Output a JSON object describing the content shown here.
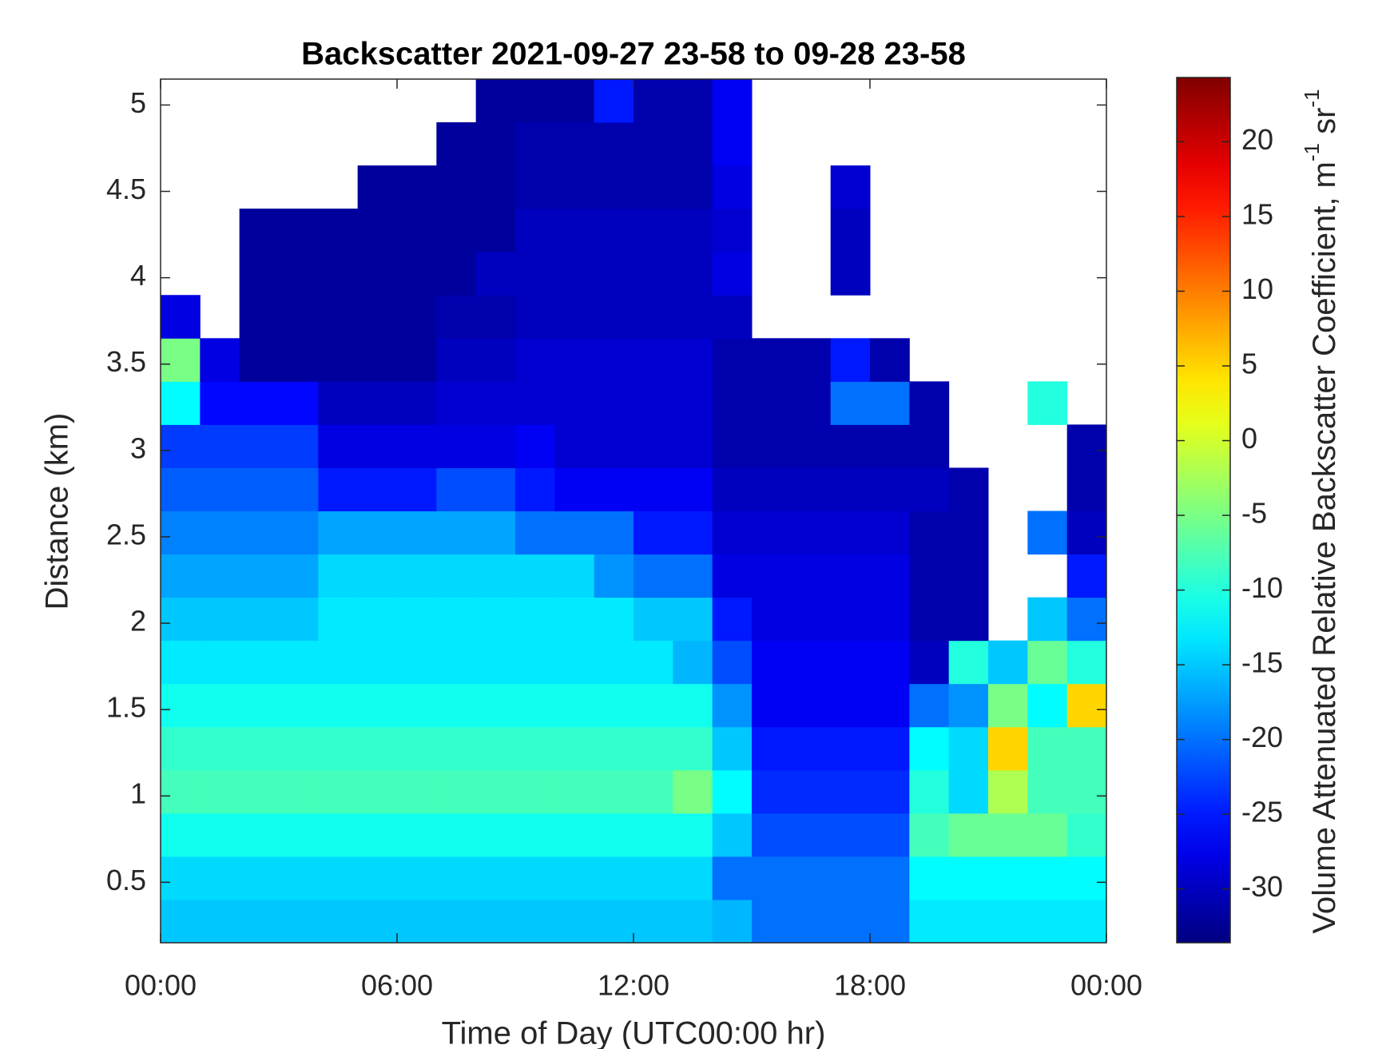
{
  "chart_data": {
    "type": "heatmap",
    "title": "Backscatter 2021-09-27 23-58 to 09-28 23-58",
    "xlabel": "Time of Day (UTC00:00 hr)",
    "ylabel": "Distance (km)",
    "colorbar_label": [
      "Volume Attenuated Relative Backscatter Coefficient, m",
      "-1",
      " sr",
      "-1"
    ],
    "colormap": "jet",
    "clim": [
      -33.6,
      24.3
    ],
    "colorbar_ticks": [
      -30,
      -25,
      -20,
      -15,
      -10,
      -5,
      0,
      5,
      10,
      15,
      20
    ],
    "xlim": [
      0,
      24
    ],
    "xticks": [
      {
        "value": 0,
        "label": "00:00"
      },
      {
        "value": 6,
        "label": "06:00"
      },
      {
        "value": 12,
        "label": "12:00"
      },
      {
        "value": 18,
        "label": "18:00"
      },
      {
        "value": 24,
        "label": "00:00"
      }
    ],
    "ylim": [
      0.15,
      5.15
    ],
    "yticks": [
      0.5,
      1,
      1.5,
      2,
      2.5,
      3,
      3.5,
      4,
      4.5,
      5
    ],
    "x_edges": [
      0,
      1,
      2,
      3,
      4,
      5,
      6,
      7,
      8,
      9,
      10,
      11,
      12,
      13,
      14,
      15,
      16,
      17,
      18,
      19,
      20,
      21,
      22,
      23,
      24
    ],
    "y_edges": [
      0.15,
      0.4,
      0.65,
      0.9,
      1.15,
      1.4,
      1.65,
      1.9,
      2.15,
      2.4,
      2.65,
      2.9,
      3.15,
      3.4,
      3.65,
      3.9,
      4.15,
      4.4,
      4.65,
      4.9,
      5.15
    ],
    "z": [
      [
        -15,
        -15,
        -15,
        -15,
        -15,
        -15,
        -15,
        -15,
        -15,
        -15,
        -15,
        -15,
        -15,
        -15,
        -16,
        -20,
        -20,
        -20,
        -20,
        -13,
        -13,
        -13,
        -13,
        -13
      ],
      [
        -14,
        -14,
        -14,
        -14,
        -14,
        -14,
        -14,
        -14,
        -14,
        -14,
        -14,
        -14,
        -14,
        -14,
        -20,
        -20,
        -20,
        -20,
        -20,
        -12,
        -12,
        -12,
        -12,
        -12
      ],
      [
        -11,
        -11,
        -11,
        -11,
        -11,
        -11,
        -11,
        -11,
        -11,
        -11,
        -11,
        -11,
        -11,
        -11,
        -15,
        -22,
        -22,
        -22,
        -22,
        -8,
        -6,
        -6,
        -6,
        -9
      ],
      [
        -8,
        -8,
        -8,
        -8,
        -8,
        -8,
        -8,
        -8,
        -8,
        -8,
        -8,
        -8,
        -8,
        -5,
        -12,
        -24,
        -24,
        -24,
        -24,
        -10,
        -14,
        -2,
        -8,
        -8
      ],
      [
        -9,
        -9,
        -9,
        -9,
        -9,
        -9,
        -9,
        -9,
        -9,
        -9,
        -9,
        -9,
        -9,
        -9,
        -15,
        -25,
        -25,
        -25,
        -25,
        -12,
        -14,
        5,
        -8,
        -8
      ],
      [
        -11,
        -11,
        -11,
        -11,
        -11,
        -11,
        -11,
        -11,
        -11,
        -11,
        -11,
        -11,
        -11,
        -11,
        -18,
        -27,
        -27,
        -27,
        -27,
        -20,
        -18,
        -5,
        -12,
        5
      ],
      [
        -13,
        -13,
        -13,
        -13,
        -13,
        -13,
        -13,
        -13,
        -13,
        -13,
        -13,
        -13,
        -13,
        -16,
        -22,
        -27,
        -27,
        -27,
        -27,
        -30,
        -10,
        -15,
        -6,
        -10
      ],
      [
        -15,
        -15,
        -15,
        -15,
        -13,
        -13,
        -13,
        -13,
        -13,
        -13,
        -13,
        -13,
        -15,
        -15,
        -25,
        -28,
        -28,
        -28,
        -28,
        -31,
        -31,
        null,
        -15,
        -20
      ],
      [
        -17,
        -17,
        -17,
        -17,
        -14,
        -14,
        -14,
        -14,
        -14,
        -14,
        -14,
        -18,
        -20,
        -20,
        -28,
        -28,
        -28,
        -28,
        -28,
        -31,
        -31,
        null,
        null,
        -25
      ],
      [
        -19,
        -19,
        -19,
        -19,
        -17,
        -17,
        -17,
        -17,
        -17,
        -20,
        -20,
        -20,
        -25,
        -25,
        -29,
        -29,
        -29,
        -29,
        -29,
        -31,
        -31,
        null,
        -20,
        -30
      ],
      [
        -21,
        -21,
        -21,
        -21,
        -25,
        -25,
        -25,
        -22,
        -22,
        -25,
        -27,
        -27,
        -27,
        -27,
        -30,
        -30,
        -30,
        -30,
        -30,
        -30,
        -31,
        null,
        null,
        -31
      ],
      [
        -23,
        -23,
        -23,
        -23,
        -28,
        -28,
        -28,
        -28,
        -28,
        -27,
        -29,
        -29,
        -29,
        -29,
        -31,
        -31,
        -31,
        -31,
        -31,
        -31,
        null,
        null,
        null,
        -31
      ],
      [
        -12,
        -26,
        -26,
        -26,
        -30,
        -30,
        -30,
        -29,
        -29,
        -29,
        -29,
        -29,
        -29,
        -29,
        -31,
        -31,
        -31,
        -20,
        -20,
        -31,
        null,
        null,
        -10,
        null
      ],
      [
        -5,
        -28,
        -32,
        -32,
        -32,
        -32,
        -32,
        -30,
        -30,
        -29,
        -29,
        -29,
        -29,
        -29,
        -31,
        -31,
        -31,
        -25,
        -31,
        null,
        null,
        null,
        null,
        null
      ],
      [
        -28,
        null,
        -32,
        -32,
        -32,
        -32,
        -32,
        -31,
        -31,
        -30,
        -30,
        -30,
        -30,
        -30,
        -30,
        null,
        null,
        null,
        null,
        null,
        null,
        null,
        null,
        null
      ],
      [
        null,
        null,
        -32,
        -32,
        -32,
        -32,
        -32,
        -32,
        -30,
        -30,
        -30,
        -30,
        -30,
        -30,
        -28,
        null,
        null,
        -30,
        null,
        null,
        null,
        null,
        null,
        null
      ],
      [
        null,
        null,
        -32,
        -32,
        -32,
        -32,
        -32,
        -32,
        -32,
        -30,
        -30,
        -30,
        -30,
        -30,
        -29,
        null,
        null,
        -30,
        null,
        null,
        null,
        null,
        null,
        null
      ],
      [
        null,
        null,
        null,
        null,
        null,
        -32,
        -32,
        -32,
        -32,
        -31,
        -31,
        -31,
        -31,
        -31,
        -28,
        null,
        null,
        -29,
        null,
        null,
        null,
        null,
        null,
        null
      ],
      [
        null,
        null,
        null,
        null,
        null,
        null,
        null,
        -32,
        -32,
        -31,
        -31,
        -31,
        -31,
        -31,
        -27,
        null,
        null,
        null,
        null,
        null,
        null,
        null,
        null,
        null
      ],
      [
        null,
        null,
        null,
        null,
        null,
        null,
        null,
        null,
        -32,
        -32,
        -32,
        -25,
        -31,
        -31,
        -27,
        null,
        null,
        null,
        null,
        null,
        null,
        null,
        null,
        null
      ]
    ]
  }
}
